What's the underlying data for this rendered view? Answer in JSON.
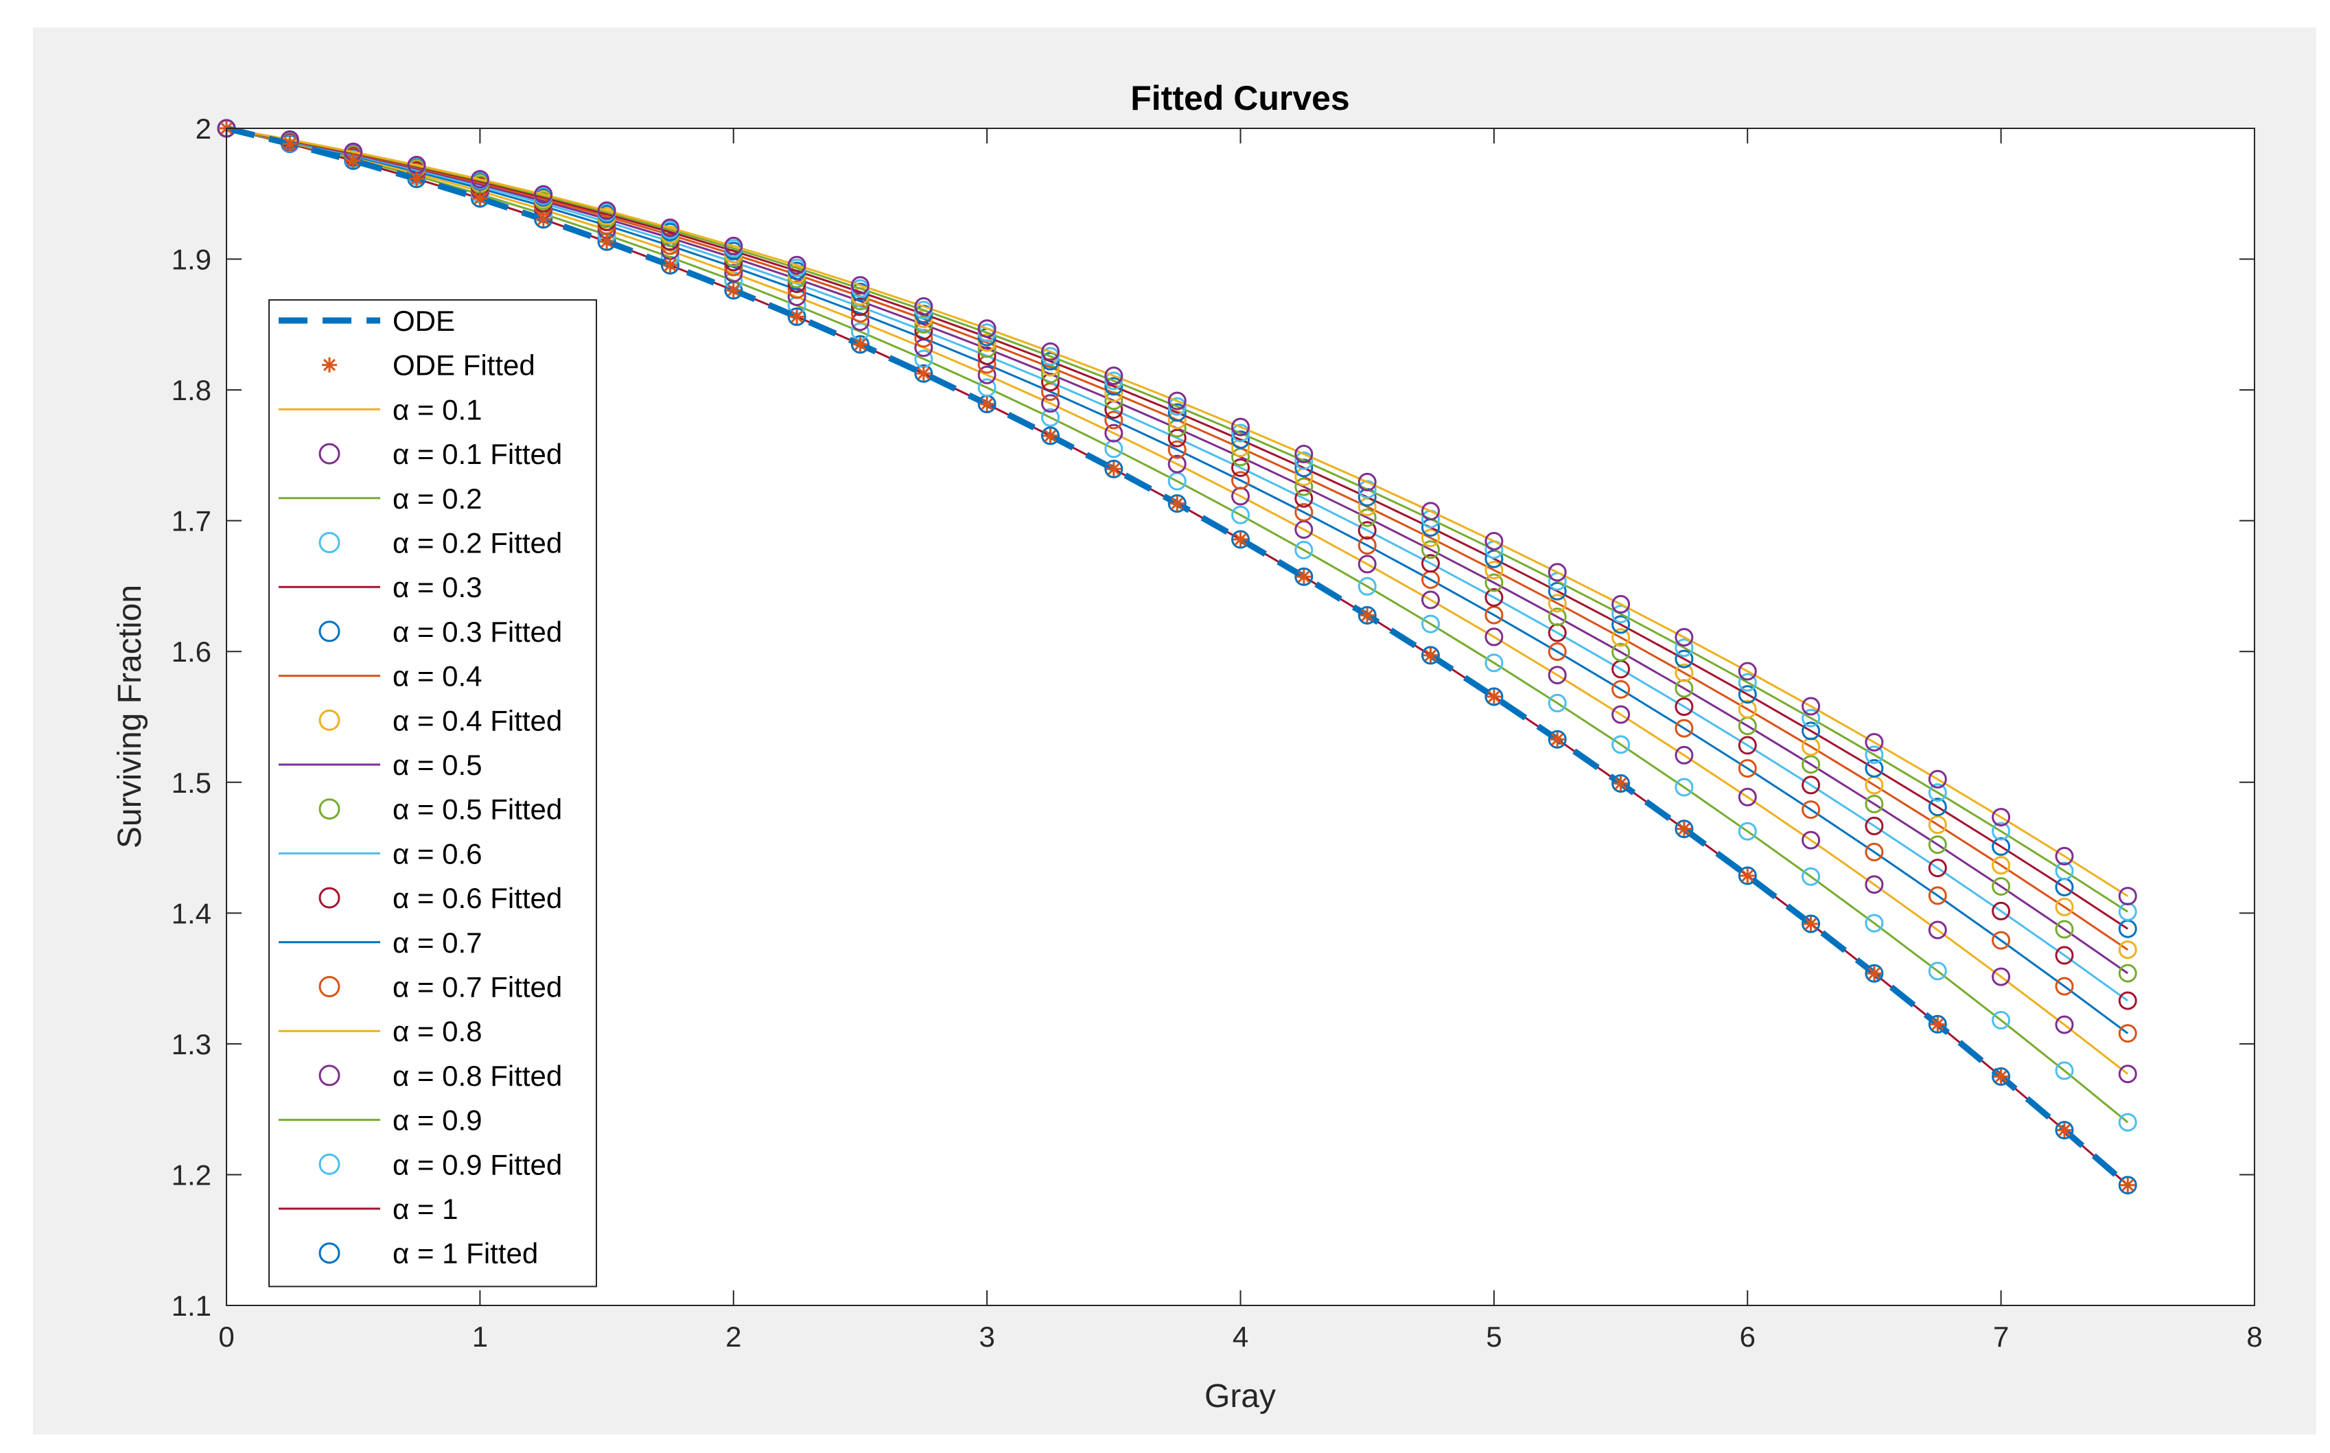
{
  "chart_data": {
    "type": "line",
    "title": "Fitted Curves",
    "xlabel": "Gray",
    "ylabel": "Surviving Fraction",
    "xlim": [
      0,
      8
    ],
    "ylim": [
      1.1,
      2.0
    ],
    "xticks": [
      "0",
      "1",
      "2",
      "3",
      "4",
      "5",
      "6",
      "7",
      "8"
    ],
    "yticks": [
      "1.1",
      "1.2",
      "1.3",
      "1.4",
      "1.5",
      "1.6",
      "1.7",
      "1.8",
      "1.9",
      "2"
    ],
    "x": [
      0,
      0.25,
      0.5,
      0.75,
      1,
      1.25,
      1.5,
      1.75,
      2,
      2.25,
      2.5,
      2.75,
      3,
      3.25,
      3.5,
      3.75,
      4,
      4.25,
      4.5,
      4.75,
      5,
      5.25,
      5.5,
      5.75,
      6,
      6.25,
      6.5,
      6.75,
      7,
      7.25,
      7.5
    ],
    "legend_position": "north-west",
    "colors": {
      "ode": "#0072bd",
      "ode_fitted": "#d95319",
      "alpha_line_cycle": [
        "#edb120",
        "#77ac30",
        "#a2142f",
        "#d95319",
        "#7e2f8e",
        "#4dbeee",
        "#0072bd",
        "#edb120",
        "#77ac30",
        "#a2142f"
      ],
      "alpha_marker_cycle": [
        "#7e2f8e",
        "#4dbeee",
        "#0072bd",
        "#edb120",
        "#77ac30",
        "#a2142f",
        "#d95319",
        "#7e2f8e",
        "#4dbeee",
        "#0072bd"
      ]
    },
    "series": [
      {
        "name": "ODE",
        "fitted_name": "ODE Fitted",
        "end_value": 1.192
      },
      {
        "name": "α = 0.1",
        "fitted_name": "α = 0.1 Fitted",
        "end_value": 1.413
      },
      {
        "name": "α = 0.2",
        "fitted_name": "α = 0.2 Fitted",
        "end_value": 1.401
      },
      {
        "name": "α = 0.3",
        "fitted_name": "α = 0.3 Fitted",
        "end_value": 1.388
      },
      {
        "name": "α = 0.4",
        "fitted_name": "α = 0.4 Fitted",
        "end_value": 1.372
      },
      {
        "name": "α = 0.5",
        "fitted_name": "α = 0.5 Fitted",
        "end_value": 1.354
      },
      {
        "name": "α = 0.6",
        "fitted_name": "α = 0.6 Fitted",
        "end_value": 1.333
      },
      {
        "name": "α = 0.7",
        "fitted_name": "α = 0.7 Fitted",
        "end_value": 1.308
      },
      {
        "name": "α = 0.8",
        "fitted_name": "α = 0.8 Fitted",
        "end_value": 1.277
      },
      {
        "name": "α = 0.9",
        "fitted_name": "α = 0.9 Fitted",
        "end_value": 1.24
      },
      {
        "name": "α = 1",
        "fitted_name": "α = 1 Fitted",
        "end_value": 1.192
      }
    ]
  }
}
